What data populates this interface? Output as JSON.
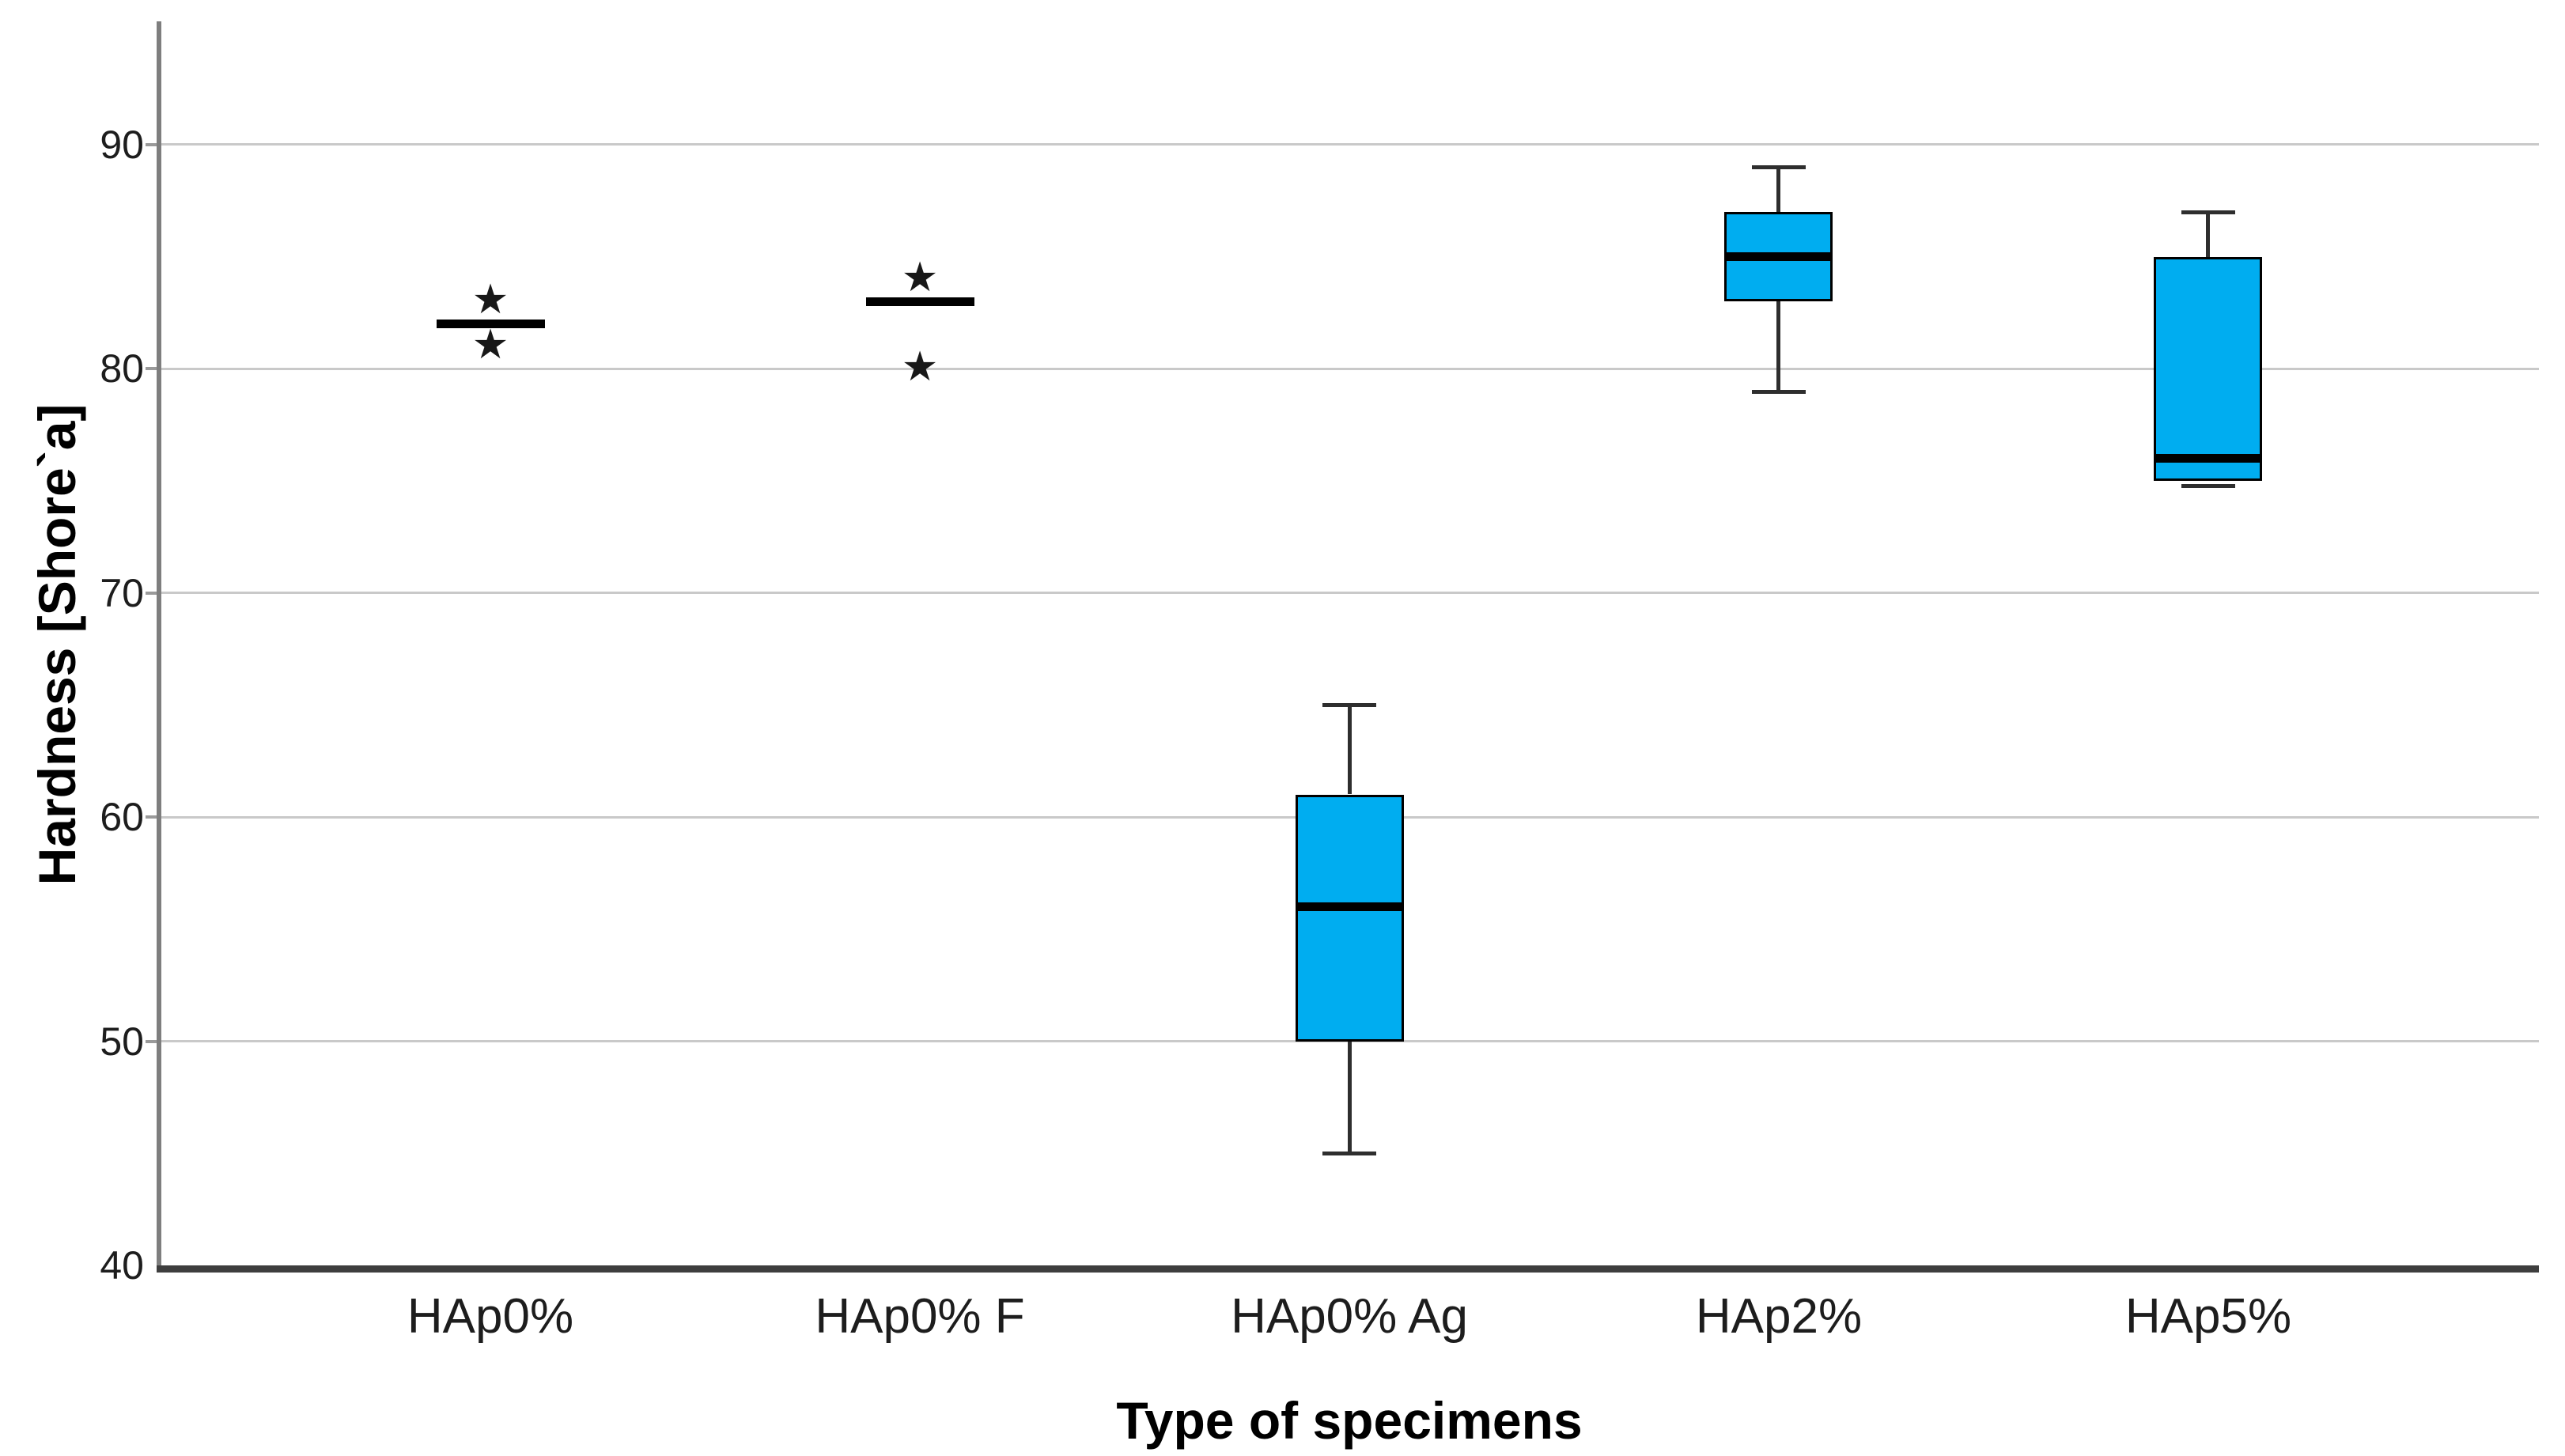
{
  "y_axis": {
    "title": "Hardness [Shore`a]",
    "min": 40,
    "max": 95.5,
    "ticks": [
      90,
      80,
      70,
      60,
      50,
      40
    ]
  },
  "x_axis": {
    "title": "Type of specimens"
  },
  "chart_data": {
    "type": "boxplot",
    "categories": [
      "HAp0%",
      "HAp0% F",
      "HAp0% Ag",
      "HAp2%",
      "HAp5%"
    ],
    "series": [
      {
        "category": "HAp0%",
        "q1": 82,
        "median": 82,
        "q3": 82,
        "whisker_low": 82,
        "whisker_high": 82,
        "outliers": [
          83,
          81
        ]
      },
      {
        "category": "HAp0% F",
        "q1": 83,
        "median": 83,
        "q3": 83,
        "whisker_low": 83,
        "whisker_high": 83,
        "outliers": [
          84,
          80
        ]
      },
      {
        "category": "HAp0% Ag",
        "q1": 50,
        "median": 56,
        "q3": 61,
        "whisker_low": 45,
        "whisker_high": 65,
        "outliers": []
      },
      {
        "category": "HAp2%",
        "q1": 83,
        "median": 85,
        "q3": 87,
        "whisker_low": 79,
        "whisker_high": 89,
        "outliers": []
      },
      {
        "category": "HAp5%",
        "q1": 75,
        "median": 76,
        "q3": 85,
        "whisker_low": 75,
        "whisker_high": 87,
        "outliers": []
      }
    ],
    "ylim": [
      40,
      95.5
    ],
    "grid": "horizontal",
    "legend": "none",
    "styles": {
      "box_fill": "#00ADF0",
      "box_border": "#000000",
      "median_color": "#000000",
      "whisker_color": "#2e2e2e",
      "grid_color": "#c9c9c9",
      "y_axis_color": "#7e7e7e",
      "x_axis_color": "#3e3e3e",
      "label_color": "#1d1d1d",
      "outlier_marker": "★"
    }
  }
}
